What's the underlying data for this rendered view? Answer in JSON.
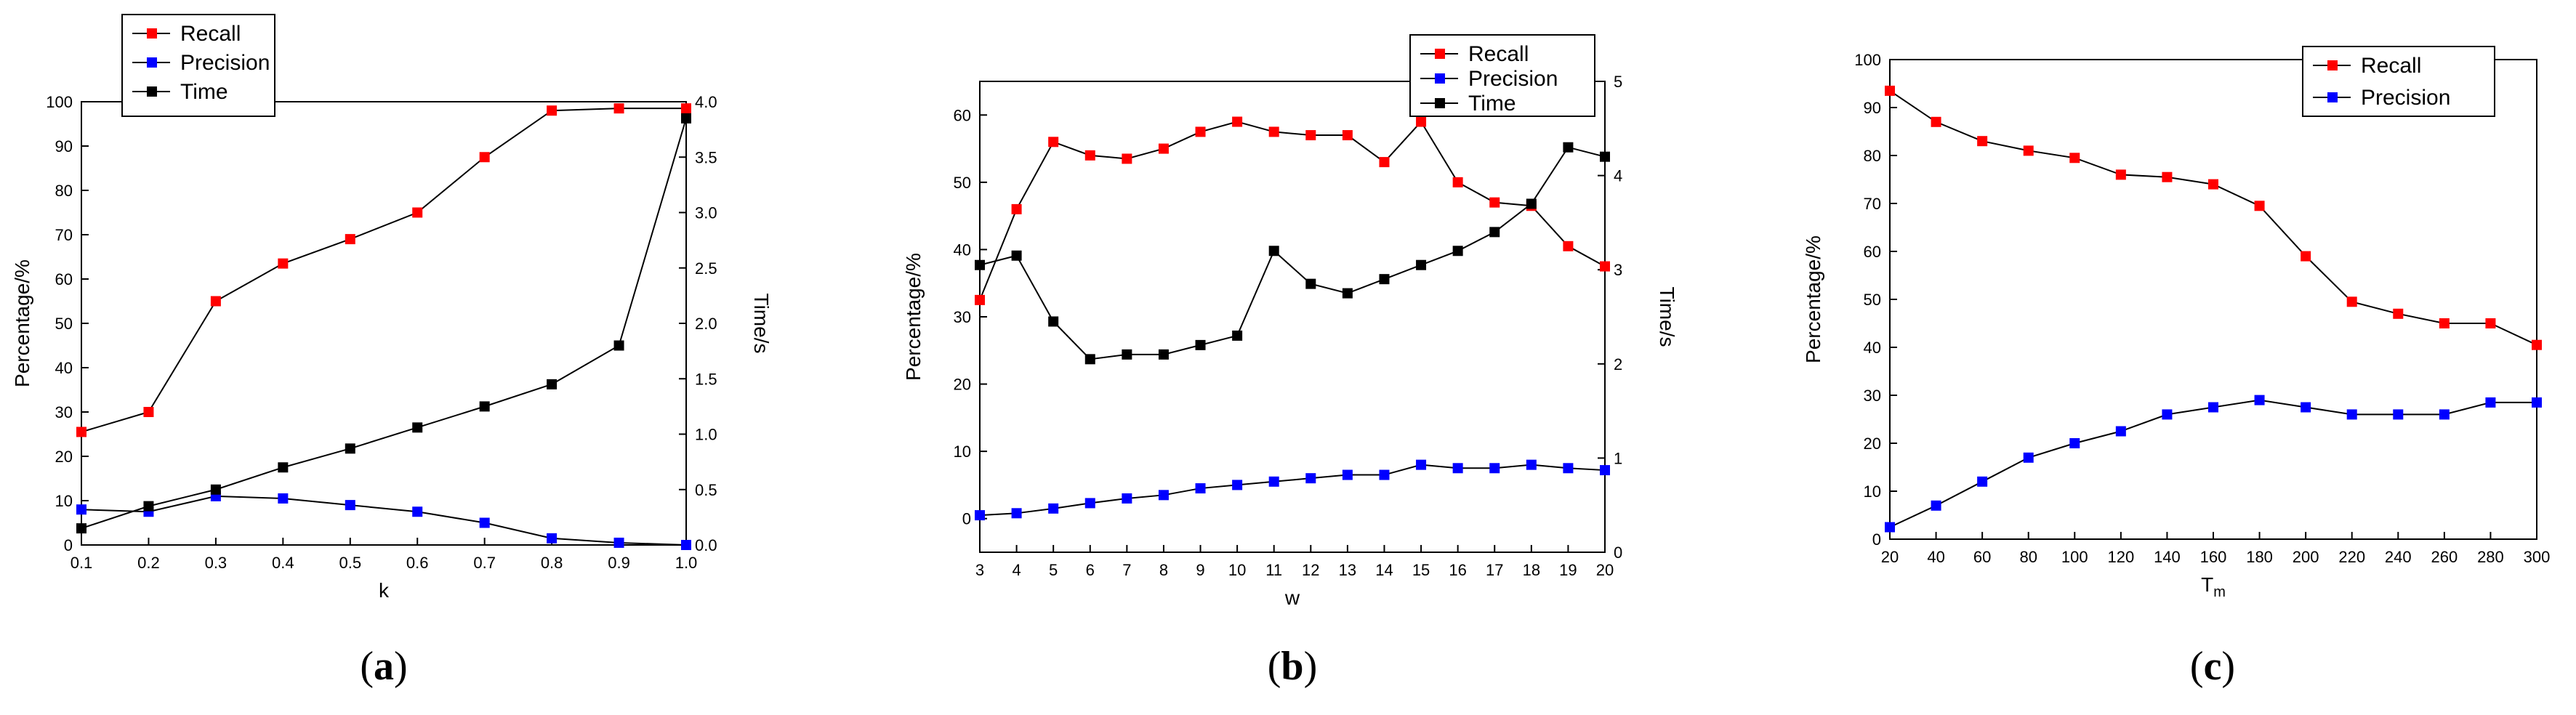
{
  "chart_data": [
    {
      "type": "line",
      "caption": "(a)",
      "caption_parts": [
        "(",
        "a",
        ")"
      ],
      "xlabel": "k",
      "ylabel": "Percentage/%",
      "y2label": "Time/s",
      "x": [
        0.1,
        0.2,
        0.3,
        0.4,
        0.5,
        0.6,
        0.7,
        0.8,
        0.9,
        1.0
      ],
      "xticks": [
        "0.1",
        "0.2",
        "0.3",
        "0.4",
        "0.5",
        "0.6",
        "0.7",
        "0.8",
        "0.9",
        "1.0"
      ],
      "xlim": [
        0.1,
        1.0
      ],
      "ylim": [
        0,
        100
      ],
      "yticks": [
        "0",
        "10",
        "20",
        "30",
        "40",
        "50",
        "60",
        "70",
        "80",
        "90",
        "100"
      ],
      "y2lim": [
        0,
        4.0
      ],
      "y2ticks": [
        "0.0",
        "0.5",
        "1.0",
        "1.5",
        "2.0",
        "2.5",
        "3.0",
        "3.5",
        "4.0"
      ],
      "legend": "top-left",
      "series": [
        {
          "name": "Recall",
          "color": "#ff0000",
          "axis": "left",
          "values": [
            25.5,
            30,
            55,
            63.5,
            69,
            75,
            87.5,
            98,
            98.5,
            98.5
          ]
        },
        {
          "name": "Precision",
          "color": "#0000ff",
          "axis": "left",
          "values": [
            8,
            7.5,
            11,
            10.5,
            9,
            7.5,
            5,
            1.5,
            0.5,
            0
          ]
        },
        {
          "name": "Time",
          "color": "#000000",
          "axis": "right",
          "values": [
            0.15,
            0.35,
            0.5,
            0.7,
            0.87,
            1.06,
            1.25,
            1.45,
            1.8,
            3.85
          ]
        }
      ]
    },
    {
      "type": "line",
      "caption": "(b)",
      "caption_parts": [
        "(",
        "b",
        ")"
      ],
      "xlabel": "w",
      "ylabel": "Percentage/%",
      "y2label": "Time/s",
      "x": [
        3,
        4,
        5,
        6,
        7,
        8,
        9,
        10,
        11,
        12,
        13,
        14,
        15,
        16,
        17,
        18,
        19,
        20
      ],
      "xticks": [
        "3",
        "4",
        "5",
        "6",
        "7",
        "8",
        "9",
        "10",
        "11",
        "12",
        "13",
        "14",
        "15",
        "16",
        "17",
        "18",
        "19",
        "20"
      ],
      "xlim": [
        3,
        20
      ],
      "ylim": [
        -5,
        65
      ],
      "yticks": [
        "0",
        "10",
        "20",
        "30",
        "40",
        "50",
        "60"
      ],
      "y2lim": [
        0,
        5
      ],
      "y2ticks": [
        "0",
        "1",
        "2",
        "3",
        "4",
        "5"
      ],
      "legend": "top-right",
      "series": [
        {
          "name": "Recall",
          "color": "#ff0000",
          "axis": "left",
          "values": [
            32.5,
            46,
            56,
            54,
            53.5,
            55,
            57.5,
            59,
            57.5,
            57,
            57,
            53,
            59,
            50,
            47,
            46.5,
            40.5,
            37.5
          ]
        },
        {
          "name": "Precision",
          "color": "#0000ff",
          "axis": "left",
          "values": [
            0.5,
            0.8,
            1.5,
            2.3,
            3,
            3.5,
            4.5,
            5,
            5.5,
            6,
            6.5,
            6.5,
            8,
            7.5,
            7.5,
            8,
            7.5,
            7.2
          ]
        },
        {
          "name": "Time",
          "color": "#000000",
          "axis": "right",
          "values": [
            3.05,
            3.15,
            2.45,
            2.05,
            2.1,
            2.1,
            2.2,
            2.3,
            3.2,
            2.85,
            2.75,
            2.9,
            3.05,
            3.2,
            3.4,
            3.7,
            4.3,
            4.2
          ]
        }
      ]
    },
    {
      "type": "line",
      "caption": "(c)",
      "caption_parts": [
        "(",
        "c",
        ")"
      ],
      "xlabel": "Tm",
      "xlabel_parts": [
        "T",
        "m"
      ],
      "ylabel": "Percentage/%",
      "x": [
        20,
        40,
        60,
        80,
        100,
        120,
        140,
        160,
        180,
        200,
        220,
        240,
        260,
        280,
        300
      ],
      "xticks": [
        "20",
        "40",
        "60",
        "80",
        "100",
        "120",
        "140",
        "160",
        "180",
        "200",
        "220",
        "240",
        "260",
        "280",
        "300"
      ],
      "xlim": [
        20,
        300
      ],
      "ylim": [
        0,
        100
      ],
      "yticks": [
        "0",
        "10",
        "20",
        "30",
        "40",
        "50",
        "60",
        "70",
        "80",
        "90",
        "100"
      ],
      "legend": "top-right",
      "series": [
        {
          "name": "Recall",
          "color": "#ff0000",
          "axis": "left",
          "values": [
            93.5,
            87,
            83,
            81,
            79.5,
            76,
            75.5,
            74,
            69.5,
            59,
            49.5,
            47,
            45,
            45,
            40.5
          ]
        },
        {
          "name": "Precision",
          "color": "#0000ff",
          "axis": "left",
          "values": [
            2.5,
            7,
            12,
            17,
            20,
            22.5,
            26,
            27.5,
            29,
            27.5,
            26,
            26,
            26,
            28.5,
            28.5
          ]
        }
      ]
    }
  ]
}
